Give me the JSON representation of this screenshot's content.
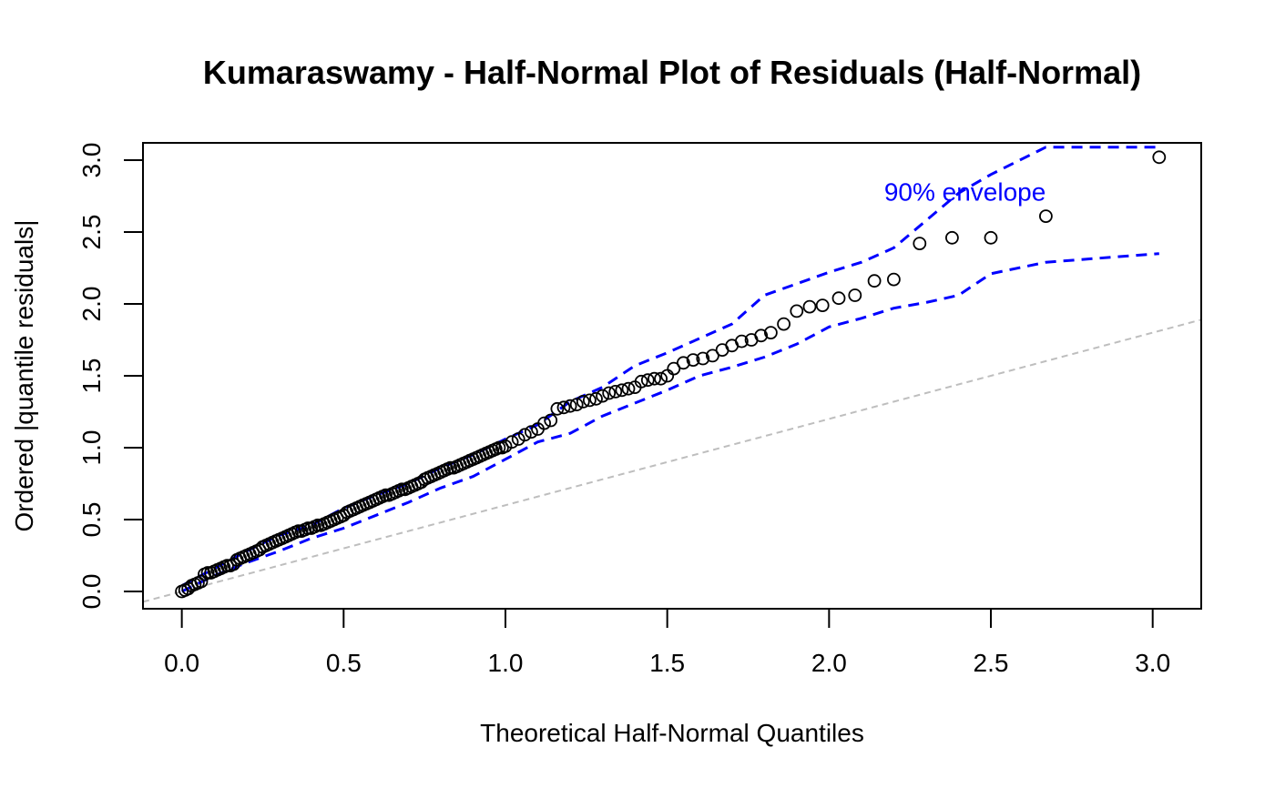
{
  "chart_data": {
    "type": "scatter",
    "title": "Kumaraswamy - Half-Normal Plot of Residuals (Half-Normal)",
    "xlabel": "Theoretical Half-Normal Quantiles",
    "ylabel": "Ordered |quantile residuals|",
    "xlim": [
      -0.12,
      3.15
    ],
    "ylim": [
      -0.12,
      3.12
    ],
    "x_ticks": [
      "0.0",
      "0.5",
      "1.0",
      "1.5",
      "2.0",
      "2.5",
      "3.0"
    ],
    "y_ticks": [
      "0.0",
      "0.5",
      "1.0",
      "1.5",
      "2.0",
      "2.5",
      "3.0"
    ],
    "grid": false,
    "legend": "none",
    "colors": {
      "points": "#000000",
      "envelope": "#0000ff",
      "reference": "#bebebe"
    },
    "annotation": {
      "text": "90% envelope",
      "x": 2.42,
      "y": 2.78,
      "color": "#0000ff"
    },
    "reference_line": {
      "x": [
        -0.12,
        3.15
      ],
      "y": [
        -0.072,
        1.89
      ]
    },
    "series": [
      {
        "type": "scatter",
        "x": [
          0.0,
          0.01,
          0.02,
          0.03,
          0.04,
          0.05,
          0.06,
          0.07,
          0.08,
          0.09,
          0.1,
          0.11,
          0.12,
          0.13,
          0.14,
          0.15,
          0.16,
          0.17,
          0.18,
          0.19,
          0.2,
          0.21,
          0.22,
          0.23,
          0.24,
          0.25,
          0.26,
          0.27,
          0.28,
          0.29,
          0.3,
          0.31,
          0.32,
          0.33,
          0.34,
          0.35,
          0.36,
          0.37,
          0.38,
          0.39,
          0.4,
          0.41,
          0.42,
          0.43,
          0.44,
          0.45,
          0.46,
          0.47,
          0.48,
          0.49,
          0.5,
          0.51,
          0.52,
          0.53,
          0.54,
          0.55,
          0.56,
          0.57,
          0.58,
          0.59,
          0.6,
          0.61,
          0.62,
          0.63,
          0.64,
          0.65,
          0.66,
          0.67,
          0.68,
          0.69,
          0.7,
          0.71,
          0.72,
          0.73,
          0.74,
          0.75,
          0.76,
          0.77,
          0.78,
          0.79,
          0.8,
          0.81,
          0.82,
          0.83,
          0.84,
          0.85,
          0.86,
          0.87,
          0.88,
          0.89,
          0.9,
          0.91,
          0.92,
          0.93,
          0.94,
          0.95,
          0.96,
          0.97,
          0.98,
          0.99,
          1.0,
          1.02,
          1.04,
          1.06,
          1.08,
          1.1,
          1.12,
          1.14,
          1.16,
          1.18,
          1.2,
          1.22,
          1.24,
          1.26,
          1.28,
          1.3,
          1.32,
          1.34,
          1.36,
          1.38,
          1.4,
          1.42,
          1.44,
          1.46,
          1.48,
          1.5,
          1.52,
          1.55,
          1.58,
          1.61,
          1.64,
          1.67,
          1.7,
          1.73,
          1.76,
          1.79,
          1.82,
          1.86,
          1.9,
          1.94,
          1.98,
          2.03,
          2.08,
          2.14,
          2.2,
          2.28,
          2.38,
          2.5,
          2.67,
          3.02
        ],
        "y": [
          0.0,
          0.01,
          0.02,
          0.04,
          0.05,
          0.06,
          0.07,
          0.12,
          0.13,
          0.13,
          0.14,
          0.15,
          0.16,
          0.17,
          0.18,
          0.18,
          0.19,
          0.22,
          0.23,
          0.24,
          0.25,
          0.26,
          0.27,
          0.28,
          0.29,
          0.31,
          0.32,
          0.33,
          0.34,
          0.35,
          0.36,
          0.37,
          0.38,
          0.39,
          0.4,
          0.41,
          0.42,
          0.42,
          0.43,
          0.44,
          0.44,
          0.45,
          0.46,
          0.46,
          0.47,
          0.48,
          0.49,
          0.5,
          0.51,
          0.52,
          0.53,
          0.55,
          0.56,
          0.57,
          0.58,
          0.59,
          0.6,
          0.61,
          0.62,
          0.63,
          0.64,
          0.65,
          0.66,
          0.67,
          0.67,
          0.68,
          0.69,
          0.7,
          0.71,
          0.71,
          0.72,
          0.73,
          0.74,
          0.75,
          0.76,
          0.78,
          0.79,
          0.8,
          0.81,
          0.82,
          0.83,
          0.84,
          0.85,
          0.86,
          0.86,
          0.87,
          0.88,
          0.89,
          0.9,
          0.91,
          0.92,
          0.93,
          0.94,
          0.95,
          0.96,
          0.97,
          0.98,
          0.99,
          1.0,
          1.0,
          1.01,
          1.04,
          1.06,
          1.09,
          1.11,
          1.13,
          1.17,
          1.19,
          1.27,
          1.28,
          1.29,
          1.3,
          1.32,
          1.33,
          1.34,
          1.36,
          1.38,
          1.39,
          1.4,
          1.41,
          1.42,
          1.46,
          1.47,
          1.48,
          1.48,
          1.5,
          1.55,
          1.59,
          1.61,
          1.62,
          1.64,
          1.68,
          1.71,
          1.74,
          1.75,
          1.78,
          1.8,
          1.86,
          1.95,
          1.98,
          1.99,
          2.04,
          2.06,
          2.16,
          2.17,
          2.42,
          2.46,
          2.46,
          2.61,
          3.02
        ]
      },
      {
        "type": "line",
        "style": "dashed",
        "x": [
          0.0,
          0.1,
          0.2,
          0.3,
          0.4,
          0.5,
          0.6,
          0.7,
          0.8,
          0.9,
          1.0,
          1.1,
          1.2,
          1.3,
          1.4,
          1.5,
          1.6,
          1.7,
          1.8,
          1.9,
          2.0,
          2.1,
          2.2,
          2.3,
          2.4,
          2.5,
          2.67,
          3.02
        ],
        "y": [
          0.04,
          0.16,
          0.28,
          0.39,
          0.46,
          0.58,
          0.67,
          0.75,
          0.86,
          0.95,
          1.06,
          1.16,
          1.32,
          1.42,
          1.57,
          1.66,
          1.76,
          1.86,
          2.06,
          2.14,
          2.22,
          2.29,
          2.39,
          2.58,
          2.77,
          2.9,
          3.09,
          3.09
        ]
      },
      {
        "type": "line",
        "style": "dashed",
        "x": [
          0.0,
          0.1,
          0.2,
          0.3,
          0.4,
          0.5,
          0.6,
          0.7,
          0.8,
          0.9,
          1.0,
          1.1,
          1.2,
          1.3,
          1.4,
          1.5,
          1.6,
          1.7,
          1.8,
          1.9,
          2.0,
          2.1,
          2.2,
          2.3,
          2.4,
          2.5,
          2.67,
          3.02
        ],
        "y": [
          0.0,
          0.11,
          0.2,
          0.28,
          0.37,
          0.44,
          0.53,
          0.62,
          0.72,
          0.8,
          0.92,
          1.04,
          1.1,
          1.22,
          1.31,
          1.4,
          1.5,
          1.56,
          1.63,
          1.72,
          1.84,
          1.9,
          1.97,
          2.01,
          2.06,
          2.21,
          2.29,
          2.35
        ]
      }
    ]
  }
}
